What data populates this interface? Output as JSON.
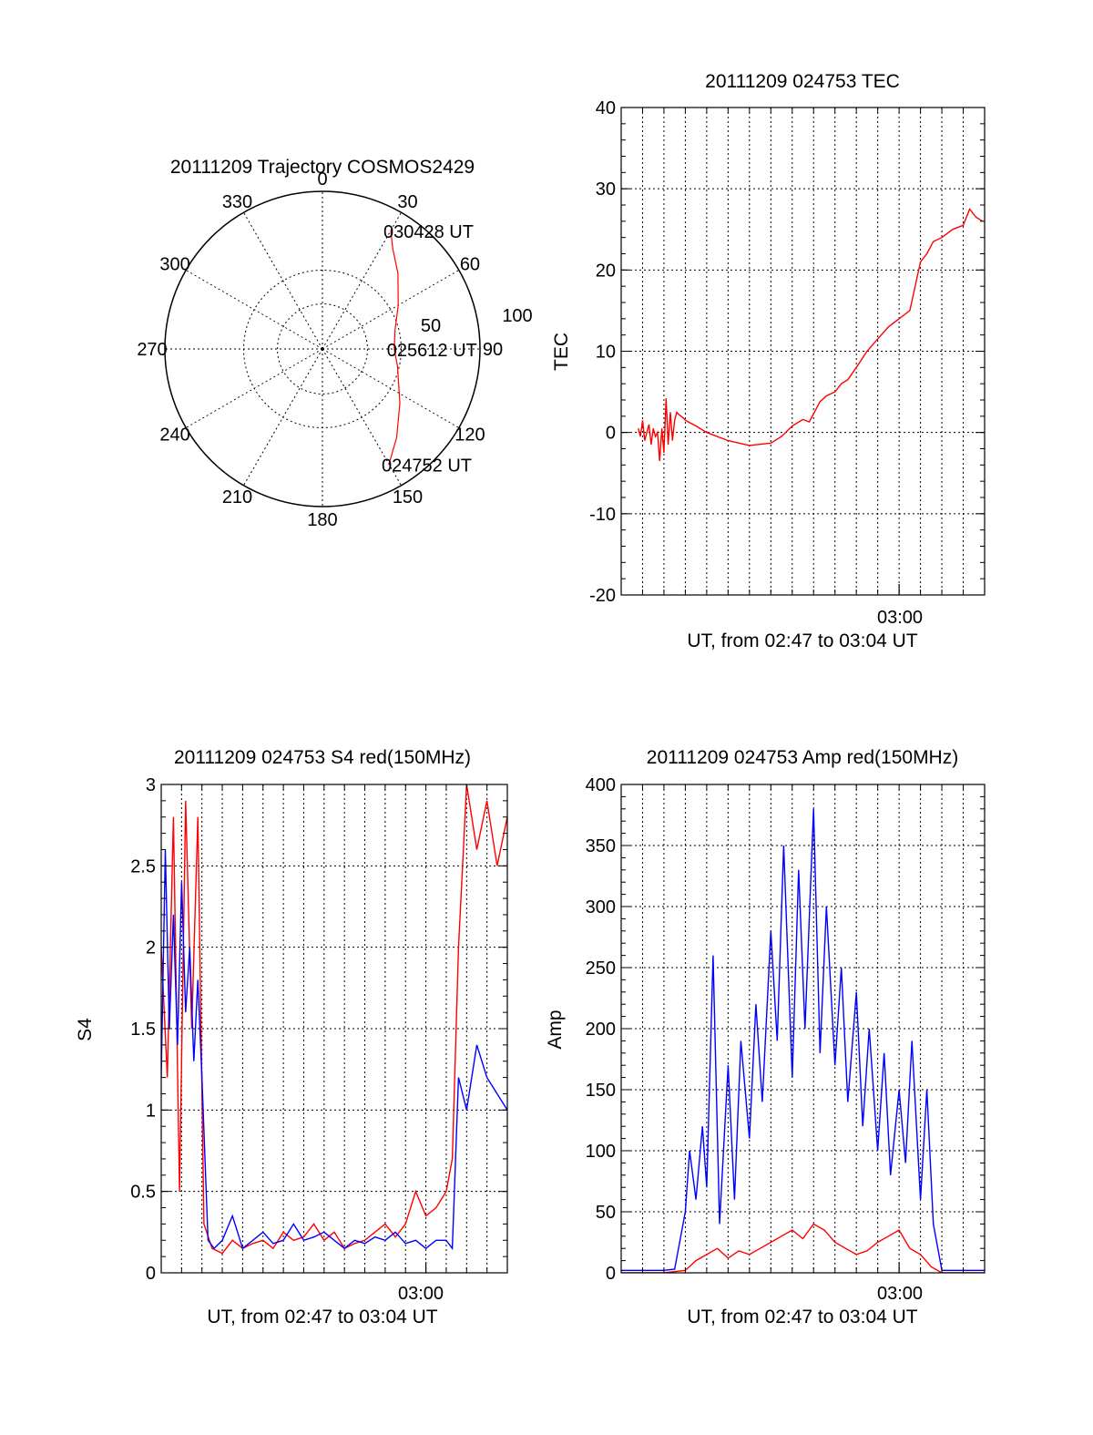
{
  "chart_data": [
    {
      "type": "polar",
      "title": "20111209 Trajectory COSMOS2429",
      "azimuth_labels": [
        "0",
        "30",
        "60",
        "90",
        "120",
        "150",
        "180",
        "210",
        "240",
        "270",
        "300",
        "330"
      ],
      "radial_labels": [
        "50",
        "100"
      ],
      "elevation_range": [
        0,
        90
      ],
      "grid": true,
      "series": [
        {
          "color": "#ff0000",
          "points": [
            {
              "az": 150,
              "el": 14
            },
            {
              "az": 140,
              "el": 24
            },
            {
              "az": 125,
              "el": 36
            },
            {
              "az": 103,
              "el": 46
            },
            {
              "az": 90,
              "el": 49
            },
            {
              "az": 75,
              "el": 47
            },
            {
              "az": 60,
              "el": 40
            },
            {
              "az": 45,
              "el": 29
            },
            {
              "az": 35,
              "el": 20
            },
            {
              "az": 30,
              "el": 12
            }
          ]
        }
      ],
      "annotations": [
        {
          "text": "030428 UT",
          "az": 30,
          "el": 12
        },
        {
          "text": "025612 UT",
          "az": 90,
          "el": 49
        },
        {
          "text": "024752 UT",
          "az": 150,
          "el": 14
        }
      ]
    },
    {
      "type": "line",
      "title": "20111209 024753 TEC",
      "xlabel": "UT, from 02:47 to 03:04 UT",
      "ylabel": "TEC",
      "xlim": [
        0,
        17
      ],
      "ylim": [
        -20,
        40
      ],
      "yticks": [
        -20,
        -10,
        0,
        10,
        20,
        30,
        40
      ],
      "xtick_label": "03:00",
      "xtick_at": 13,
      "grid": true,
      "series": [
        {
          "color": "#ff0000",
          "x": [
            0.8,
            0.9,
            1.0,
            1.1,
            1.2,
            1.3,
            1.4,
            1.5,
            1.6,
            1.7,
            1.8,
            1.9,
            2.0,
            2.1,
            2.2,
            2.3,
            2.4,
            2.5,
            2.6,
            2.7,
            2.8,
            2.9,
            3.0,
            3.5,
            4.0,
            5.0,
            6.0,
            7.0,
            7.5,
            8.0,
            8.5,
            8.8,
            9.1,
            9.3,
            9.6,
            10.0,
            10.3,
            10.6,
            11.0,
            11.5,
            12.0,
            12.5,
            13.0,
            13.5,
            14.0,
            14.3,
            14.6,
            15.0,
            15.5,
            16.0,
            16.3,
            16.6,
            16.9
          ],
          "y": [
            0.5,
            -0.5,
            1.5,
            -1.0,
            0.0,
            1.0,
            -1.5,
            0.5,
            -0.5,
            0.0,
            -3.5,
            0.5,
            -2.5,
            4.2,
            -1.5,
            2.5,
            -1.0,
            1.5,
            2.5,
            2.2,
            2.0,
            1.8,
            1.5,
            0.8,
            0.0,
            -1.0,
            -1.6,
            -1.3,
            -0.5,
            0.8,
            1.6,
            1.3,
            2.8,
            3.8,
            4.5,
            5.0,
            6.0,
            6.5,
            8.0,
            10.0,
            11.5,
            13.0,
            14.0,
            15.0,
            21.0,
            22.0,
            23.5,
            24.0,
            25.0,
            25.5,
            27.5,
            26.5,
            26.0
          ]
        }
      ]
    },
    {
      "type": "line",
      "title": "20111209 024753 S4 red(150MHz)",
      "xlabel": "UT, from 02:47 to 03:04 UT",
      "ylabel": "S4",
      "xlim": [
        0,
        17
      ],
      "ylim": [
        0,
        3
      ],
      "yticks": [
        0,
        0.5,
        1,
        1.5,
        2,
        2.5,
        3
      ],
      "xtick_label": "03:00",
      "xtick_at": 13,
      "grid": true,
      "series": [
        {
          "color": "#ff0000",
          "x": [
            0.0,
            0.3,
            0.6,
            0.9,
            1.2,
            1.5,
            1.8,
            2.1,
            2.5,
            3.0,
            3.5,
            4.0,
            4.5,
            5.0,
            5.5,
            6.0,
            6.5,
            7.0,
            7.5,
            8.0,
            8.5,
            9.0,
            9.5,
            10.0,
            10.5,
            11.0,
            11.5,
            12.0,
            12.5,
            13.0,
            13.5,
            14.0,
            14.3,
            14.6,
            15.0,
            15.5,
            16.0,
            16.5,
            17.0
          ],
          "y": [
            2.0,
            1.2,
            2.8,
            0.5,
            2.9,
            1.5,
            2.8,
            0.3,
            0.15,
            0.12,
            0.2,
            0.15,
            0.18,
            0.2,
            0.15,
            0.25,
            0.2,
            0.22,
            0.3,
            0.2,
            0.25,
            0.15,
            0.18,
            0.2,
            0.25,
            0.3,
            0.22,
            0.3,
            0.5,
            0.35,
            0.4,
            0.5,
            0.7,
            2.0,
            3.0,
            2.6,
            2.9,
            2.5,
            2.8
          ]
        },
        {
          "color": "#0000ff",
          "x": [
            0.0,
            0.2,
            0.4,
            0.6,
            0.8,
            1.0,
            1.2,
            1.4,
            1.6,
            1.8,
            2.0,
            2.3,
            2.6,
            3.0,
            3.5,
            4.0,
            4.5,
            5.0,
            5.5,
            6.0,
            6.5,
            7.0,
            7.5,
            8.0,
            8.5,
            9.0,
            9.5,
            10.0,
            10.5,
            11.0,
            11.5,
            12.0,
            12.5,
            13.0,
            13.5,
            14.0,
            14.3,
            14.6,
            15.0,
            15.5,
            16.0,
            16.5,
            17.0
          ],
          "y": [
            1.2,
            2.6,
            1.5,
            2.2,
            1.4,
            2.4,
            1.6,
            2.0,
            1.3,
            1.8,
            1.2,
            0.2,
            0.15,
            0.2,
            0.35,
            0.15,
            0.2,
            0.25,
            0.18,
            0.2,
            0.3,
            0.2,
            0.22,
            0.25,
            0.2,
            0.15,
            0.2,
            0.18,
            0.22,
            0.2,
            0.25,
            0.18,
            0.2,
            0.15,
            0.2,
            0.2,
            0.15,
            1.2,
            1.0,
            1.4,
            1.2,
            1.1,
            1.0
          ]
        }
      ]
    },
    {
      "type": "line",
      "title": "20111209 024753 Amp red(150MHz)",
      "xlabel": "UT, from 02:47 to 03:04 UT",
      "ylabel": "Amp",
      "xlim": [
        0,
        17
      ],
      "ylim": [
        0,
        400
      ],
      "yticks": [
        0,
        50,
        100,
        150,
        200,
        250,
        300,
        350,
        400
      ],
      "xtick_label": "03:00",
      "xtick_at": 13,
      "grid": true,
      "series": [
        {
          "color": "#ff0000",
          "x": [
            0.0,
            2.0,
            3.0,
            3.5,
            4.0,
            4.5,
            5.0,
            5.5,
            6.0,
            6.5,
            7.0,
            7.5,
            8.0,
            8.5,
            9.0,
            9.5,
            10.0,
            10.5,
            11.0,
            11.5,
            12.0,
            12.5,
            13.0,
            13.5,
            14.0,
            14.5,
            15.0,
            17.0
          ],
          "y": [
            0,
            0,
            2,
            10,
            15,
            20,
            12,
            18,
            15,
            20,
            25,
            30,
            35,
            28,
            40,
            35,
            25,
            20,
            15,
            18,
            25,
            30,
            35,
            20,
            15,
            5,
            0,
            0
          ]
        },
        {
          "color": "#0000ff",
          "x": [
            0.0,
            2.0,
            2.5,
            3.0,
            3.2,
            3.5,
            3.8,
            4.0,
            4.3,
            4.6,
            5.0,
            5.3,
            5.6,
            6.0,
            6.3,
            6.6,
            7.0,
            7.3,
            7.6,
            8.0,
            8.3,
            8.6,
            9.0,
            9.3,
            9.6,
            10.0,
            10.3,
            10.6,
            11.0,
            11.3,
            11.6,
            12.0,
            12.3,
            12.6,
            13.0,
            13.3,
            13.6,
            14.0,
            14.3,
            14.6,
            15.0,
            17.0
          ],
          "y": [
            2,
            2,
            3,
            50,
            100,
            60,
            120,
            70,
            260,
            40,
            170,
            60,
            190,
            110,
            220,
            140,
            280,
            190,
            350,
            160,
            330,
            200,
            380,
            180,
            300,
            170,
            250,
            140,
            230,
            120,
            200,
            100,
            180,
            80,
            150,
            90,
            190,
            60,
            150,
            40,
            2,
            2
          ]
        }
      ]
    }
  ]
}
